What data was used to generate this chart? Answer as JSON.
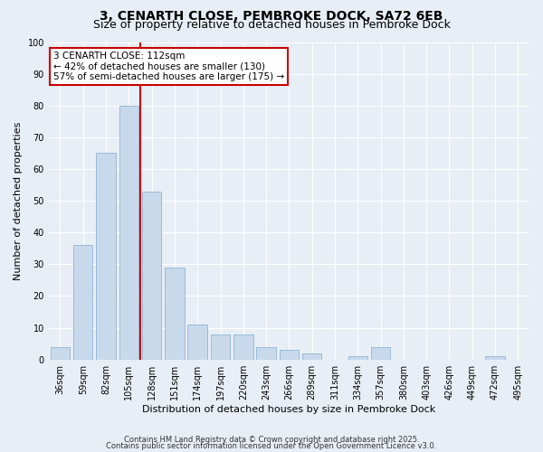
{
  "title": "3, CENARTH CLOSE, PEMBROKE DOCK, SA72 6EB",
  "subtitle": "Size of property relative to detached houses in Pembroke Dock",
  "xlabel": "Distribution of detached houses by size in Pembroke Dock",
  "ylabel": "Number of detached properties",
  "categories": [
    "36sqm",
    "59sqm",
    "82sqm",
    "105sqm",
    "128sqm",
    "151sqm",
    "174sqm",
    "197sqm",
    "220sqm",
    "243sqm",
    "266sqm",
    "289sqm",
    "311sqm",
    "334sqm",
    "357sqm",
    "380sqm",
    "403sqm",
    "426sqm",
    "449sqm",
    "472sqm",
    "495sqm"
  ],
  "values": [
    4,
    36,
    65,
    80,
    53,
    29,
    11,
    8,
    8,
    4,
    3,
    2,
    0,
    1,
    4,
    0,
    0,
    0,
    0,
    1,
    0
  ],
  "bar_color": "#c9d9ec",
  "bar_edge_color": "#8fb4d4",
  "vline_x": 3.5,
  "vline_color": "#cc0000",
  "annotation_line1": "3 CENARTH CLOSE: 112sqm",
  "annotation_line2": "← 42% of detached houses are smaller (130)",
  "annotation_line3": "57% of semi-detached houses are larger (175) →",
  "annotation_box_color": "#ffffff",
  "annotation_box_edge": "#cc0000",
  "ylim": [
    0,
    100
  ],
  "background_color": "#e8eef5",
  "footer_line1": "Contains HM Land Registry data © Crown copyright and database right 2025.",
  "footer_line2": "Contains public sector information licensed under the Open Government Licence v3.0.",
  "title_fontsize": 10,
  "subtitle_fontsize": 9,
  "tick_fontsize": 7,
  "ylabel_fontsize": 8,
  "xlabel_fontsize": 8,
  "annotation_fontsize": 7.5,
  "footer_fontsize": 6
}
